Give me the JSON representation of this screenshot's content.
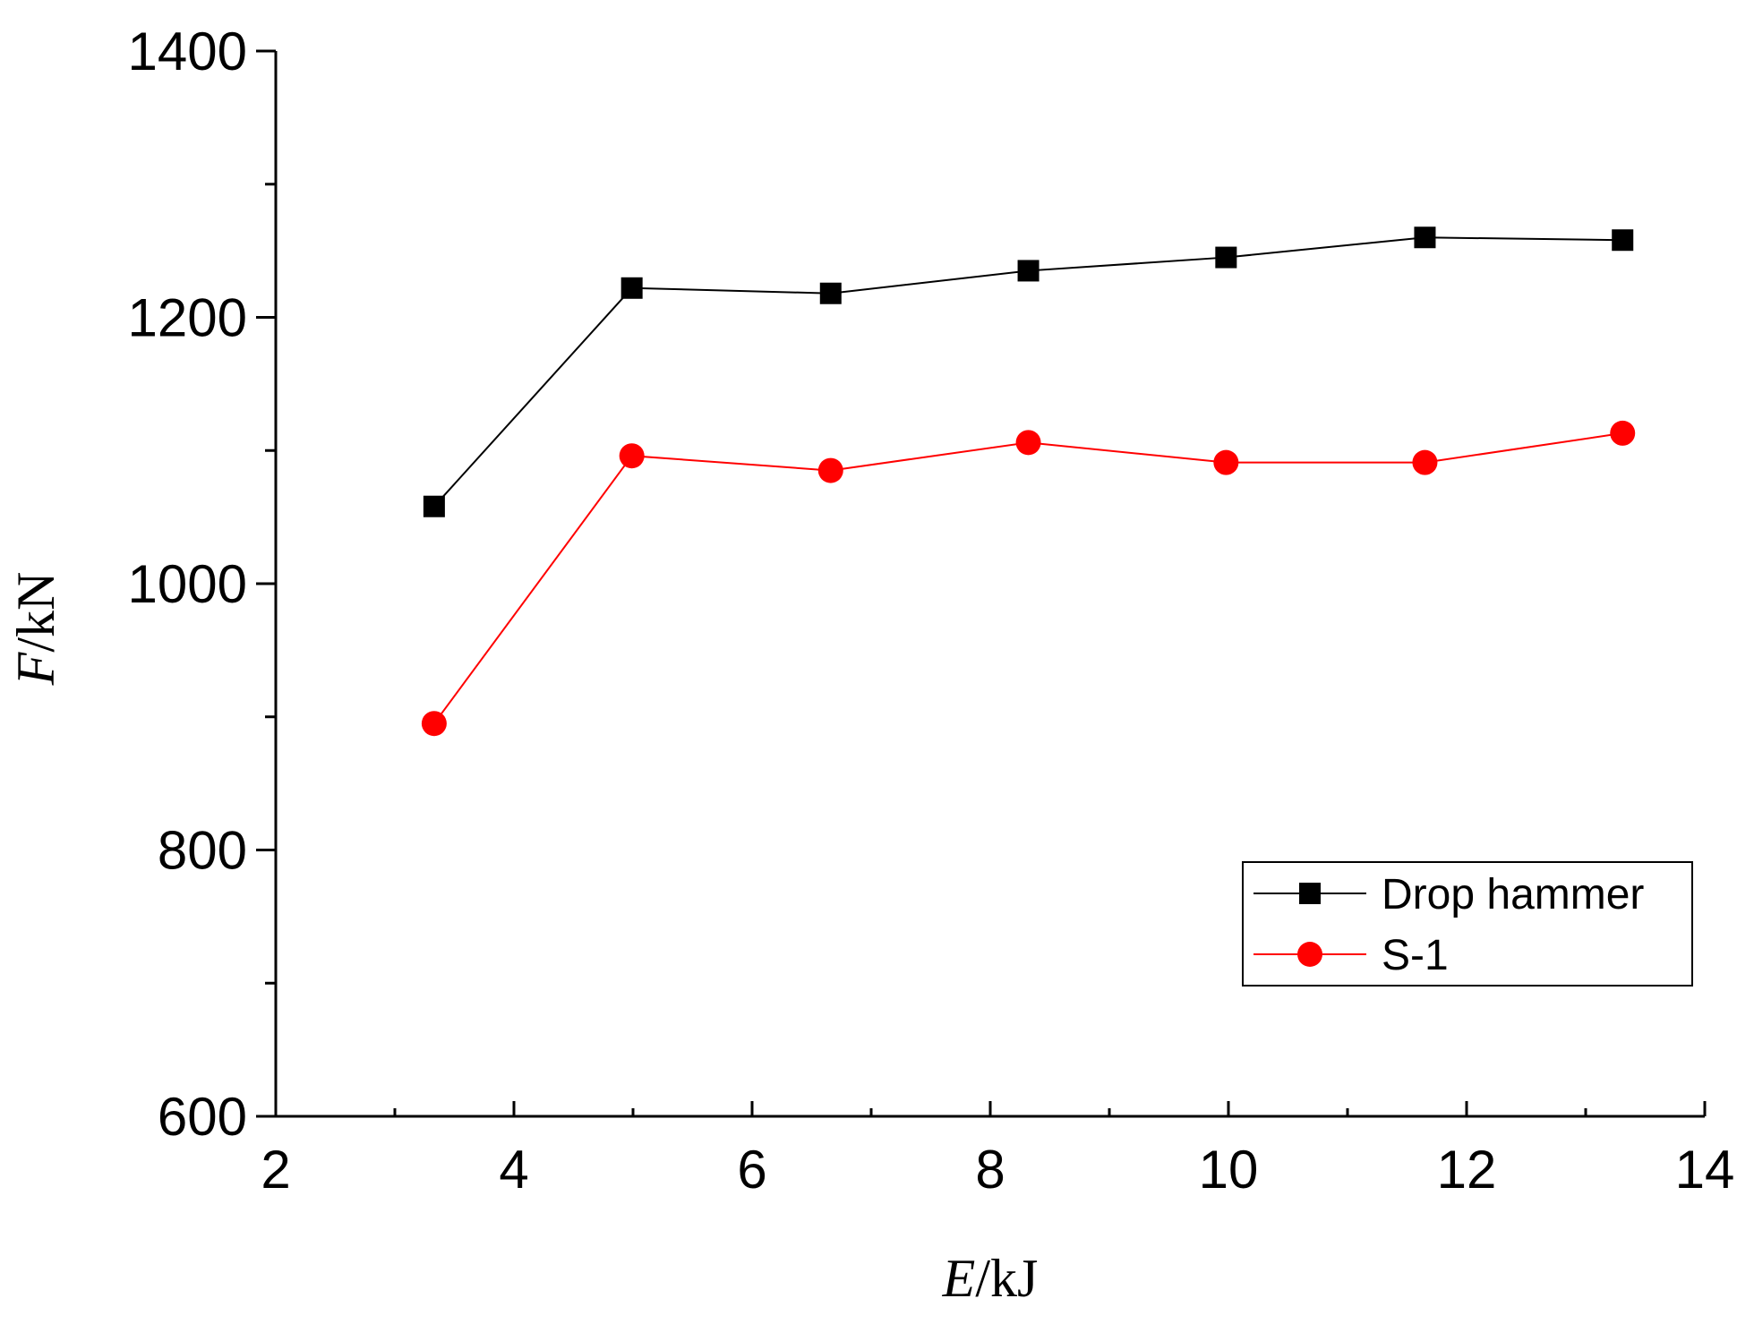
{
  "chart_data": {
    "type": "line",
    "title": "",
    "xlabel": {
      "variable": "E",
      "unit": "/kJ"
    },
    "ylabel": {
      "variable": "F",
      "unit": "/kN"
    },
    "xlim": [
      2,
      14
    ],
    "ylim": [
      600,
      1400
    ],
    "xticks": [
      2,
      4,
      6,
      8,
      10,
      12,
      14
    ],
    "yticks": [
      600,
      800,
      1000,
      1200,
      1400
    ],
    "legend_position": "bottom-right",
    "x": [
      3.33,
      4.99,
      6.66,
      8.32,
      9.98,
      11.65,
      13.31
    ],
    "series": [
      {
        "name": "Drop hammer",
        "color": "#000000",
        "marker": "square",
        "values": [
          1058,
          1222,
          1218,
          1235,
          1245,
          1260,
          1258
        ]
      },
      {
        "name": "S-1",
        "color": "#ff0000",
        "marker": "circle",
        "values": [
          895,
          1096,
          1085,
          1106,
          1091,
          1091,
          1113
        ]
      }
    ]
  }
}
